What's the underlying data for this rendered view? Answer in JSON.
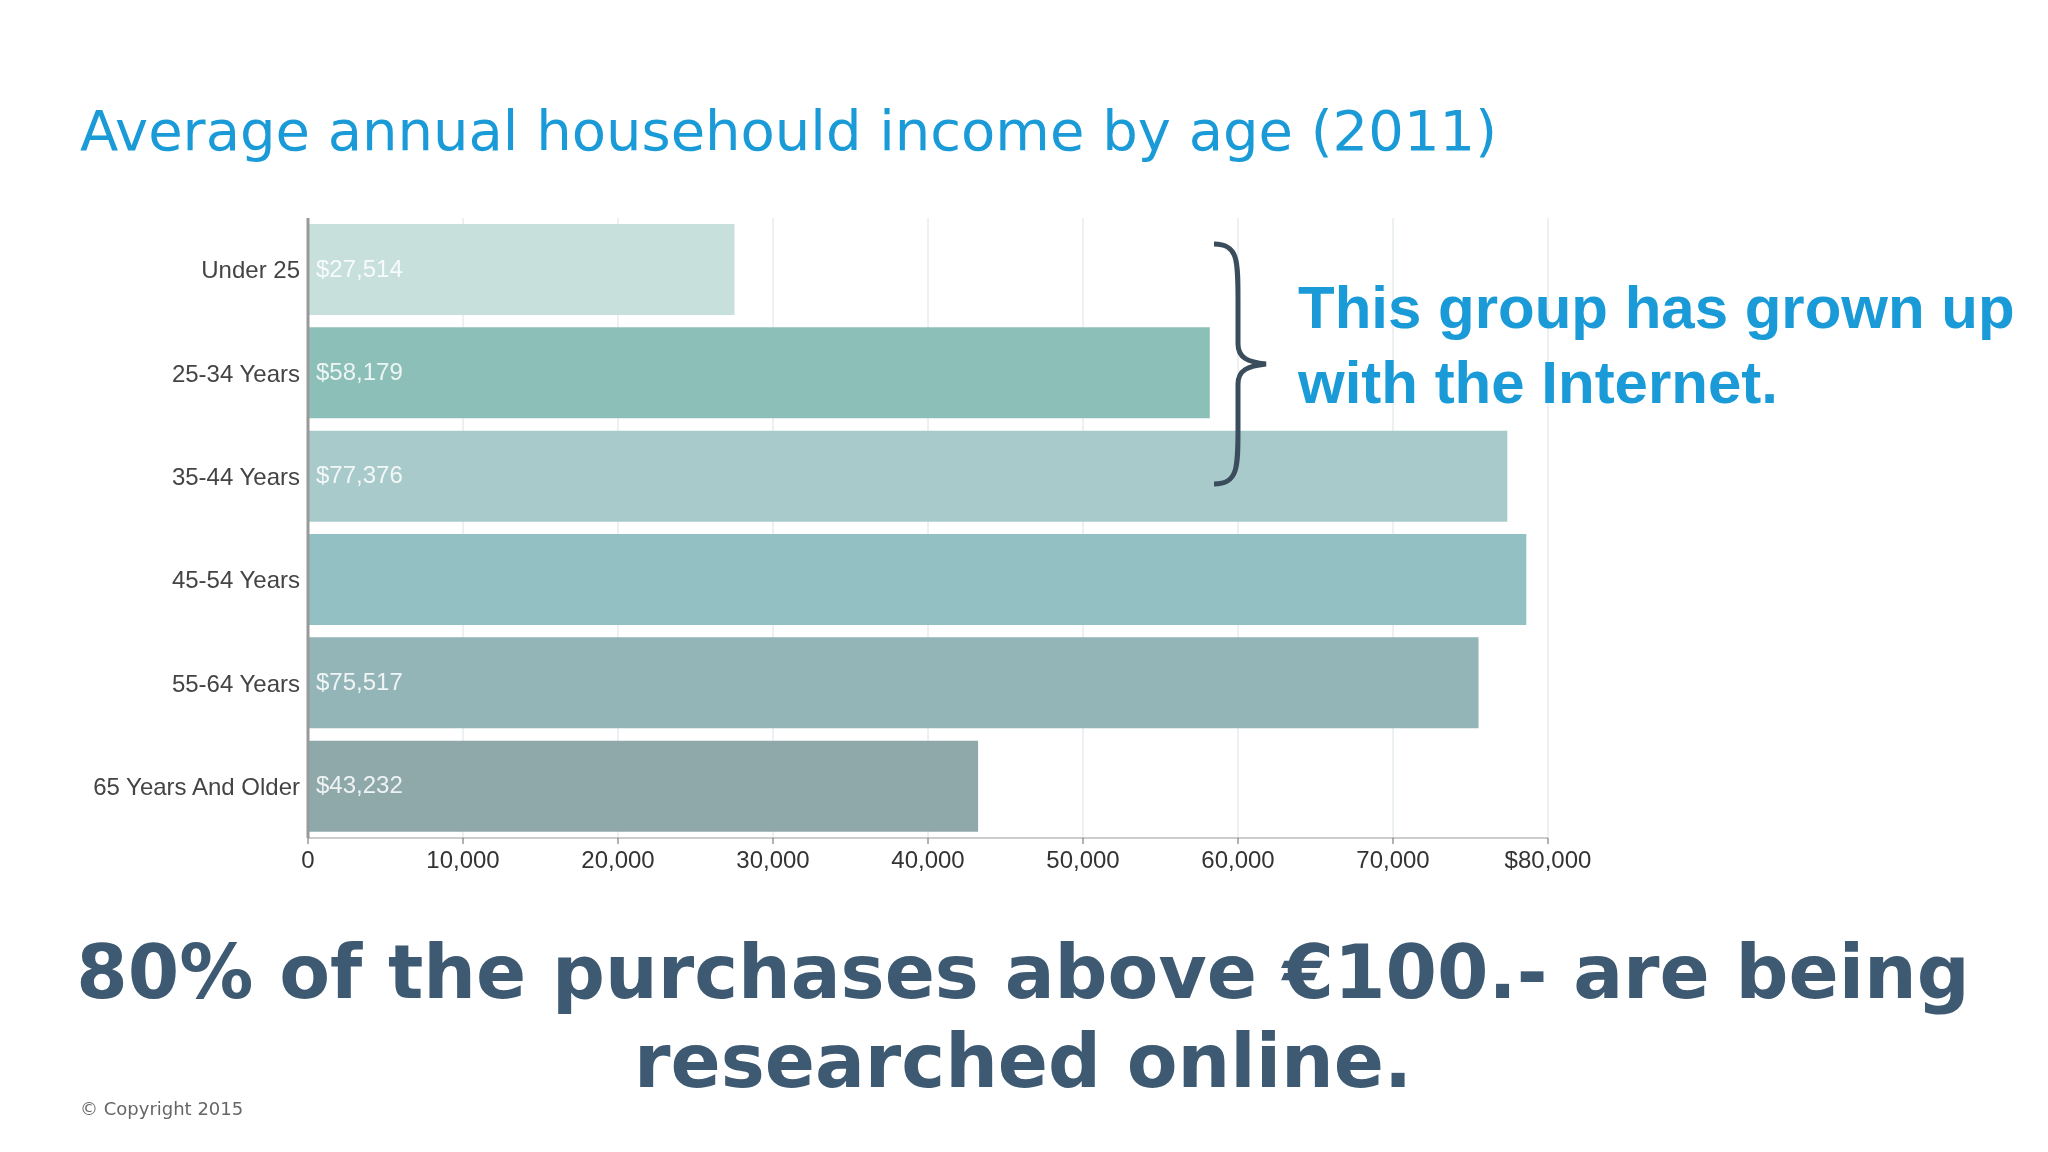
{
  "chart_data": {
    "type": "bar",
    "orientation": "horizontal",
    "title": "Average annual househould income by age (2011)",
    "categories": [
      "Under 25",
      "25-34 Years",
      "35-44 Years",
      "45-54 Years",
      "55-64 Years",
      "65 Years And Older"
    ],
    "values": [
      27514,
      58179,
      77376,
      78600,
      75517,
      43232
    ],
    "colors": [
      "#c8e0dc",
      "#8bbfb8",
      "#a9cacb",
      "#93c0c3",
      "#93b5b8",
      "#8fa9ab"
    ],
    "value_labels": [
      "$27,514",
      "$58,179",
      "$77,376",
      null,
      "$75,517",
      "$43,232"
    ],
    "xlim": [
      0,
      80000
    ],
    "xticks": [
      0,
      {
        "value": 10000,
        "label": "10,000"
      },
      {
        "value": 20000,
        "label": "20,000"
      },
      {
        "value": 30000,
        "label": "30,000"
      },
      {
        "value": 40000,
        "label": "40,000"
      },
      {
        "value": 50000,
        "label": "50,000"
      },
      {
        "value": 60000,
        "label": "60,000"
      },
      {
        "value": 70000,
        "label": "70,000"
      },
      {
        "value": 80000,
        "label": "$80,000"
      }
    ],
    "grid": "x",
    "legend": false,
    "annotations": [
      "This group has grown up with the Internet.",
      "80% of the purchases above €100.- are being researched online.",
      "© Copyright 2015"
    ]
  }
}
